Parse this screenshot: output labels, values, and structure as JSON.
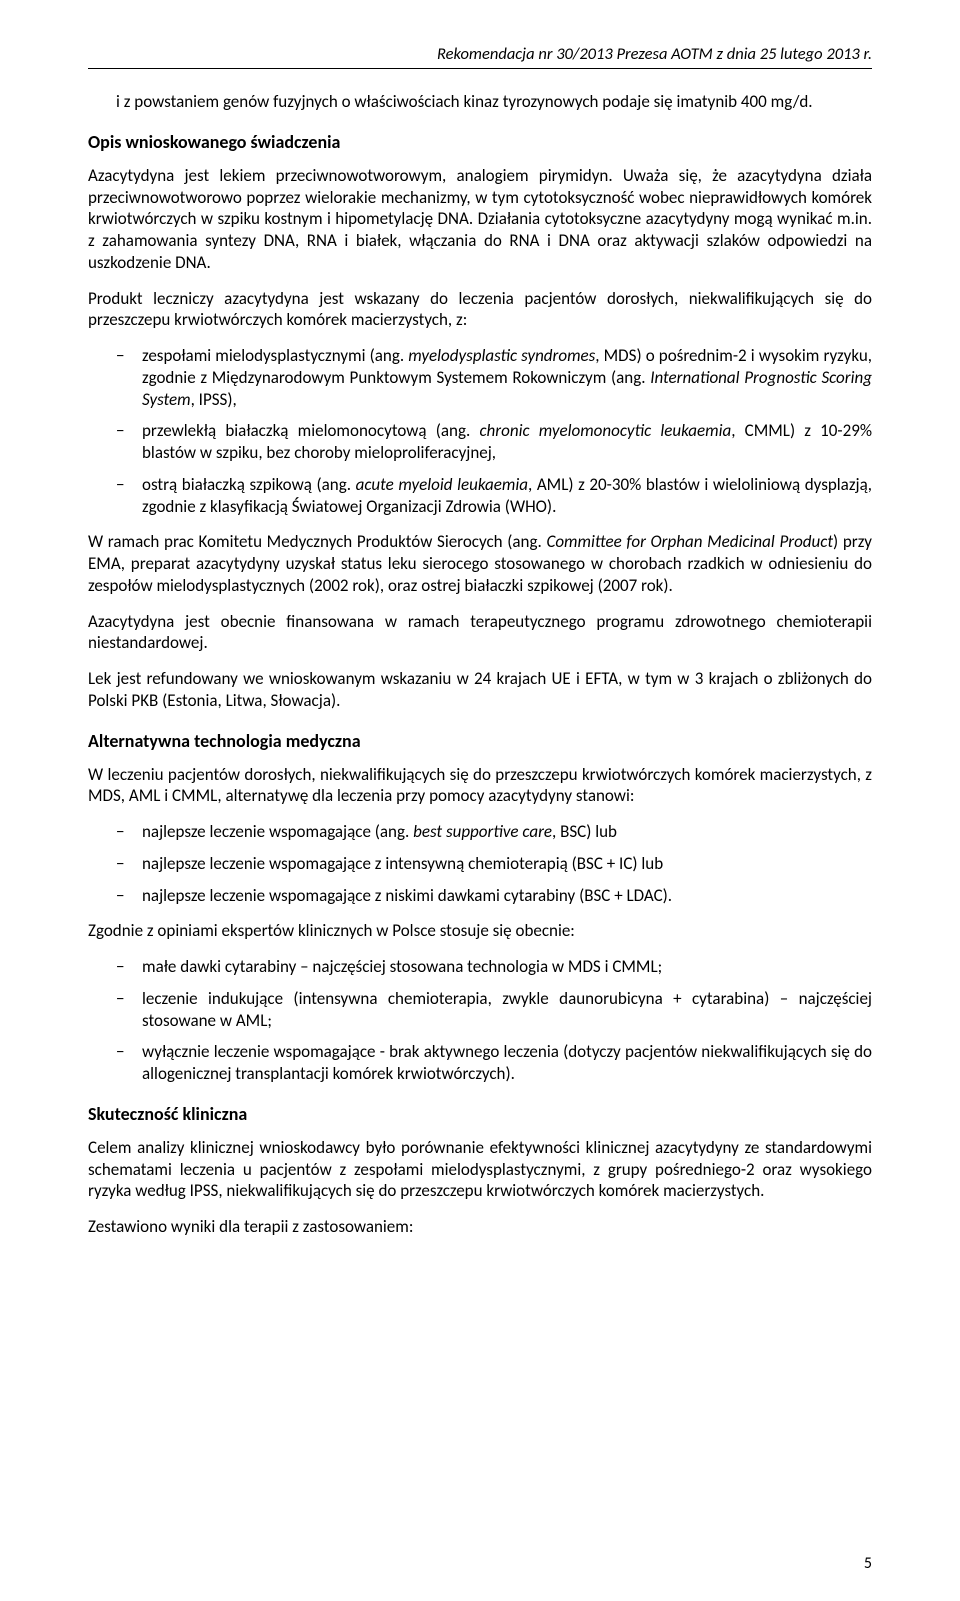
{
  "header": {
    "text": "Rekomendacja nr 30/2013 Prezesa AOTM z dnia 25 lutego 2013 r."
  },
  "intro": {
    "p1": "i z powstaniem genów fuzyjnych o właściwościach kinaz tyrozynowych podaje się imatynib 400 mg/d."
  },
  "opis": {
    "heading": "Opis wnioskowanego świadczenia",
    "p1": "Azacytydyna jest lekiem przeciwnowotworowym, analogiem pirymidyn. Uważa się, że azacytydyna działa przeciwnowotworowo poprzez wielorakie mechanizmy, w tym cytotoksyczność wobec nieprawidłowych komórek krwiotwórczych w szpiku kostnym i hipometylację DNA. Działania cytotoksyczne azacytydyny mogą wynikać m.in. z zahamowania syntezy DNA, RNA i białek, włączania do RNA i DNA oraz aktywacji szlaków odpowiedzi na uszkodzenie DNA.",
    "p2": "Produkt leczniczy azacytydyna jest wskazany do leczenia pacjentów dorosłych, niekwalifikujących się do przeszczepu krwiotwórczych komórek macierzystych, z:",
    "li1_a": "zespołami mielodysplastycznymi (ang. ",
    "li1_i": "myelodysplastic syndromes",
    "li1_b": ", MDS) o pośrednim-2 i wysokim ryzyku, zgodnie z Międzynarodowym Punktowym Systemem Rokowniczym (ang. ",
    "li1_i2": "International Prognostic Scoring System",
    "li1_c": ", IPSS),",
    "li2_a": "przewlekłą białaczką mielomonocytową (ang. ",
    "li2_i": "chronic myelomonocytic leukaemia",
    "li2_b": ", CMML) z 10-29% blastów w szpiku, bez choroby mieloproliferacyjnej,",
    "li3_a": "ostrą białaczką szpikową (ang. ",
    "li3_i": "acute myeloid leukaemia",
    "li3_b": ", AML) z 20-30% blastów i wieloliniową dysplazją, zgodnie z klasyfikacją Światowej Organizacji Zdrowia (WHO).",
    "p3_a": "W ramach prac Komitetu Medycznych Produktów Sierocych (ang. ",
    "p3_i": "Committee for Orphan Medicinal Product",
    "p3_b": ") przy EMA, preparat azacytydyny uzyskał status leku sierocego stosowanego w chorobach rzadkich w odniesieniu do zespołów mielodysplastycznych (2002 rok), oraz ostrej białaczki szpikowej (2007 rok).",
    "p4": "Azacytydyna jest obecnie finansowana w ramach terapeutycznego programu zdrowotnego chemioterapii niestandardowej.",
    "p5": "Lek jest refundowany we wnioskowanym wskazaniu w 24 krajach UE i EFTA, w tym w 3 krajach o zbliżonych do Polski PKB (Estonia, Litwa, Słowacja)."
  },
  "alt": {
    "heading": "Alternatywna technologia medyczna",
    "p1": "W leczeniu pacjentów dorosłych, niekwalifikujących się do przeszczepu krwiotwórczych komórek macierzystych, z MDS, AML i CMML, alternatywę dla leczenia przy pomocy azacytydyny stanowi:",
    "li1_a": "najlepsze leczenie wspomagające (ang. ",
    "li1_i": "best supportive care",
    "li1_b": ", BSC) lub",
    "li2": "najlepsze leczenie wspomagające z intensywną chemioterapią (BSC + IC) lub",
    "li3": "najlepsze leczenie wspomagające z niskimi dawkami cytarabiny (BSC + LDAC).",
    "p2": "Zgodnie z opiniami ekspertów klinicznych w Polsce stosuje się obecnie:",
    "li4": "małe dawki cytarabiny – najczęściej stosowana technologia w MDS i CMML;",
    "li5": "leczenie indukujące (intensywna chemioterapia, zwykle daunorubicyna + cytarabina) – najczęściej stosowane w AML;",
    "li6": "wyłącznie leczenie wspomagające - brak aktywnego leczenia (dotyczy pacjentów niekwalifikujących się do allogenicznej transplantacji komórek krwiotwórczych)."
  },
  "skut": {
    "heading": "Skuteczność kliniczna",
    "p1": "Celem analizy klinicznej wnioskodawcy było porównanie efektywności klinicznej azacytydyny ze standardowymi schematami leczenia u pacjentów z zespołami mielodysplastycznymi, z grupy pośredniego-2 oraz wysokiego ryzyka według IPSS, niekwalifikujących się do przeszczepu krwiotwórczych komórek macierzystych.",
    "p2": "Zestawiono wyniki dla terapii z zastosowaniem:"
  },
  "footer": {
    "page_num": "5"
  }
}
